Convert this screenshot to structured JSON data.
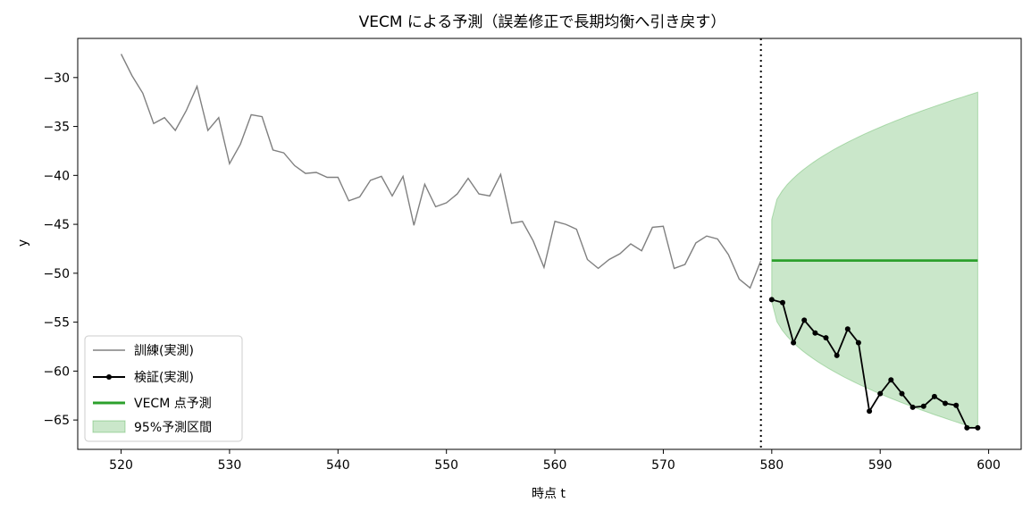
{
  "chart_data": {
    "type": "line",
    "title": "VECM による予測（誤差修正で長期均衡へ引き戻す）",
    "xlabel": "時点 t",
    "ylabel": "y",
    "xlim": [
      516,
      603
    ],
    "ylim": [
      -68,
      -26
    ],
    "x_ticks": [
      520,
      530,
      540,
      550,
      560,
      570,
      580,
      590,
      600
    ],
    "y_ticks": [
      -30,
      -35,
      -40,
      -45,
      -50,
      -55,
      -60,
      -65
    ],
    "x_tick_labels": [
      "520",
      "530",
      "540",
      "550",
      "560",
      "570",
      "580",
      "590",
      "600"
    ],
    "y_tick_labels": [
      "−30",
      "−35",
      "−40",
      "−45",
      "−50",
      "−55",
      "−60",
      "−65"
    ],
    "cutoff_x": 579,
    "legend_position": "lower-left",
    "colors": {
      "train": "#808080",
      "test": "#000000",
      "forecast": "#2ca02c",
      "interval": "#2ca02c"
    },
    "series": [
      {
        "name": "訓練(実測)",
        "style": "line",
        "x": [
          520,
          521,
          522,
          523,
          524,
          525,
          526,
          527,
          528,
          529,
          530,
          531,
          532,
          533,
          534,
          535,
          536,
          537,
          538,
          539,
          540,
          541,
          542,
          543,
          544,
          545,
          546,
          547,
          548,
          549,
          550,
          551,
          552,
          553,
          554,
          555,
          556,
          557,
          558,
          559,
          560,
          561,
          562,
          563,
          564,
          565,
          566,
          567,
          568,
          569,
          570,
          571,
          572,
          573,
          574,
          575,
          576,
          577,
          578,
          579
        ],
        "y": [
          -27.6,
          -29.8,
          -31.6,
          -34.7,
          -34.1,
          -35.4,
          -33.4,
          -30.9,
          -35.4,
          -34.1,
          -38.8,
          -36.8,
          -33.8,
          -34.0,
          -37.4,
          -37.7,
          -39.0,
          -39.8,
          -39.7,
          -40.2,
          -40.2,
          -42.6,
          -42.2,
          -40.5,
          -40.1,
          -42.1,
          -40.1,
          -45.1,
          -40.9,
          -43.2,
          -42.8,
          -41.9,
          -40.3,
          -41.9,
          -42.1,
          -39.9,
          -44.9,
          -44.7,
          -46.7,
          -49.4,
          -44.7,
          -45.0,
          -45.5,
          -48.6,
          -49.5,
          -48.6,
          -48.0,
          -47.0,
          -47.7,
          -45.3,
          -45.2,
          -49.5,
          -49.1,
          -46.9,
          -46.2,
          -46.5,
          -48.1,
          -50.6,
          -51.5,
          -48.7
        ]
      },
      {
        "name": "検証(実測)",
        "style": "line-marker",
        "x": [
          580,
          581,
          582,
          583,
          584,
          585,
          586,
          587,
          588,
          589,
          590,
          591,
          592,
          593,
          594,
          595,
          596,
          597,
          598,
          599
        ],
        "y": [
          -52.7,
          -53.0,
          -57.1,
          -54.8,
          -56.1,
          -56.6,
          -58.4,
          -55.7,
          -57.1,
          -64.1,
          -62.3,
          -60.9,
          -62.3,
          -63.7,
          -63.6,
          -62.6,
          -63.3,
          -63.5,
          -65.8,
          -65.8
        ]
      },
      {
        "name": "VECM 点予測",
        "style": "line",
        "x": [
          580,
          599
        ],
        "y": [
          -48.7,
          -48.7
        ]
      }
    ],
    "interval": {
      "name": "95%予測区間",
      "x_start": 580,
      "x_end": 599,
      "center": -48.7,
      "half_width_at_start": 4.2,
      "half_width_at_end": 17.2
    }
  }
}
